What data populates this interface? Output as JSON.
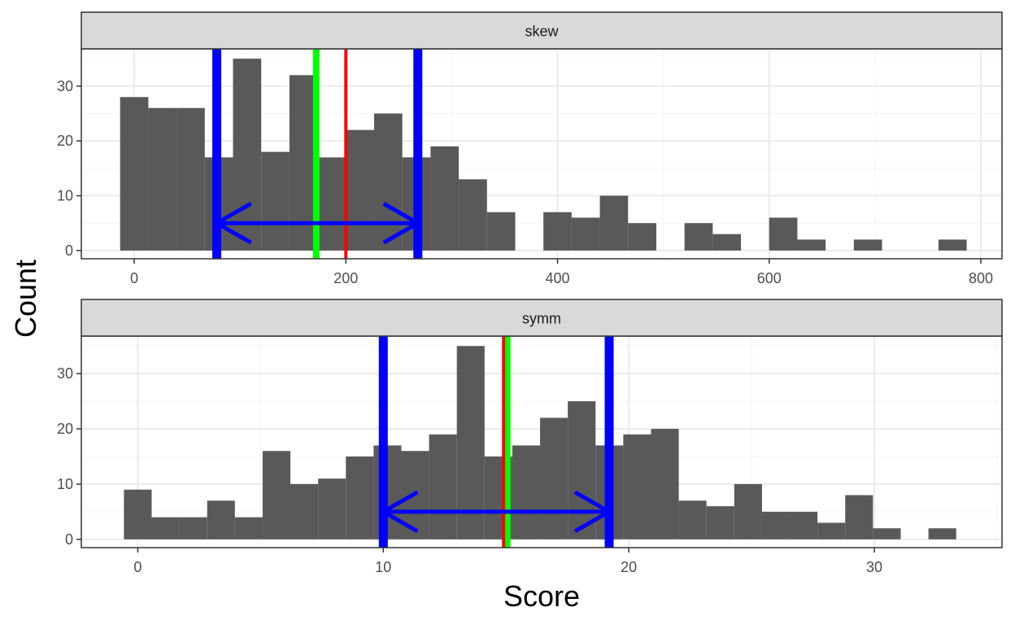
{
  "chart_data": {
    "type": "bar",
    "xlabel": "Score",
    "ylabel": "Count",
    "panels": [
      {
        "label": "skew",
        "binwidth": 26.67,
        "bins": [
          {
            "x": 0,
            "count": 28
          },
          {
            "x": 26.67,
            "count": 26
          },
          {
            "x": 53.33,
            "count": 26
          },
          {
            "x": 80,
            "count": 17
          },
          {
            "x": 106.67,
            "count": 35
          },
          {
            "x": 133.33,
            "count": 18
          },
          {
            "x": 160,
            "count": 32
          },
          {
            "x": 186.67,
            "count": 17
          },
          {
            "x": 213.33,
            "count": 22
          },
          {
            "x": 240,
            "count": 25
          },
          {
            "x": 266.67,
            "count": 17
          },
          {
            "x": 293.33,
            "count": 19
          },
          {
            "x": 320,
            "count": 13
          },
          {
            "x": 346.67,
            "count": 7
          },
          {
            "x": 373.33,
            "count": 0
          },
          {
            "x": 400,
            "count": 7
          },
          {
            "x": 426.67,
            "count": 6
          },
          {
            "x": 453.33,
            "count": 10
          },
          {
            "x": 480,
            "count": 5
          },
          {
            "x": 506.67,
            "count": 0
          },
          {
            "x": 533.33,
            "count": 5
          },
          {
            "x": 560,
            "count": 3
          },
          {
            "x": 586.67,
            "count": 0
          },
          {
            "x": 613.33,
            "count": 6
          },
          {
            "x": 640,
            "count": 2
          },
          {
            "x": 666.67,
            "count": 0
          },
          {
            "x": 693.33,
            "count": 2
          },
          {
            "x": 720,
            "count": 0
          },
          {
            "x": 746.67,
            "count": 0
          },
          {
            "x": 773.33,
            "count": 2
          }
        ],
        "xlim": [
          -50,
          820
        ],
        "ylim": [
          -1.5,
          36.8
        ],
        "xticks": [
          0,
          200,
          400,
          600,
          800
        ],
        "yticks": [
          0,
          10,
          20,
          30
        ],
        "lines": [
          {
            "x": 78,
            "color": "#0000ff",
            "role": "interval-lower"
          },
          {
            "x": 268,
            "color": "#0000ff",
            "role": "interval-upper"
          },
          {
            "x": 172,
            "color": "#00ff00",
            "role": "green-line"
          },
          {
            "x": 200,
            "color": "#ff0000",
            "role": "red-line"
          }
        ],
        "arrow": {
          "from": 78,
          "to": 268,
          "y": 5,
          "color": "#0000ff"
        }
      },
      {
        "label": "symm",
        "binwidth": 1.13,
        "bins": [
          {
            "x": 0,
            "count": 9
          },
          {
            "x": 1.13,
            "count": 4
          },
          {
            "x": 2.26,
            "count": 4
          },
          {
            "x": 3.39,
            "count": 7
          },
          {
            "x": 4.52,
            "count": 4
          },
          {
            "x": 5.65,
            "count": 16
          },
          {
            "x": 6.78,
            "count": 10
          },
          {
            "x": 7.91,
            "count": 11
          },
          {
            "x": 9.04,
            "count": 15
          },
          {
            "x": 10.17,
            "count": 17
          },
          {
            "x": 11.3,
            "count": 16
          },
          {
            "x": 12.43,
            "count": 19
          },
          {
            "x": 13.56,
            "count": 35
          },
          {
            "x": 14.69,
            "count": 15
          },
          {
            "x": 15.82,
            "count": 17
          },
          {
            "x": 16.95,
            "count": 22
          },
          {
            "x": 18.08,
            "count": 25
          },
          {
            "x": 19.21,
            "count": 17
          },
          {
            "x": 20.34,
            "count": 19
          },
          {
            "x": 21.47,
            "count": 20
          },
          {
            "x": 22.6,
            "count": 7
          },
          {
            "x": 23.73,
            "count": 6
          },
          {
            "x": 24.86,
            "count": 10
          },
          {
            "x": 25.99,
            "count": 5
          },
          {
            "x": 27.12,
            "count": 5
          },
          {
            "x": 28.25,
            "count": 3
          },
          {
            "x": 29.38,
            "count": 8
          },
          {
            "x": 30.51,
            "count": 2
          },
          {
            "x": 31.64,
            "count": 0
          },
          {
            "x": 32.77,
            "count": 2
          }
        ],
        "xlim": [
          -2.3,
          35.2
        ],
        "ylim": [
          -1.5,
          36.8
        ],
        "xticks": [
          0,
          10,
          20,
          30
        ],
        "yticks": [
          0,
          10,
          20,
          30
        ],
        "lines": [
          {
            "x": 10,
            "color": "#0000ff",
            "role": "interval-lower"
          },
          {
            "x": 19.2,
            "color": "#0000ff",
            "role": "interval-upper"
          },
          {
            "x": 15.05,
            "color": "#00ff00",
            "role": "green-line"
          },
          {
            "x": 14.9,
            "color": "#ff0000",
            "role": "red-line"
          }
        ],
        "arrow": {
          "from": 10,
          "to": 19.2,
          "y": 5,
          "color": "#0000ff"
        }
      }
    ],
    "colors": {
      "bar": "#595959",
      "grid_major": "#ebebeb",
      "grid_minor": "#f5f5f5",
      "strip_bg": "#d9d9d9",
      "panel_border": "#333333"
    }
  }
}
